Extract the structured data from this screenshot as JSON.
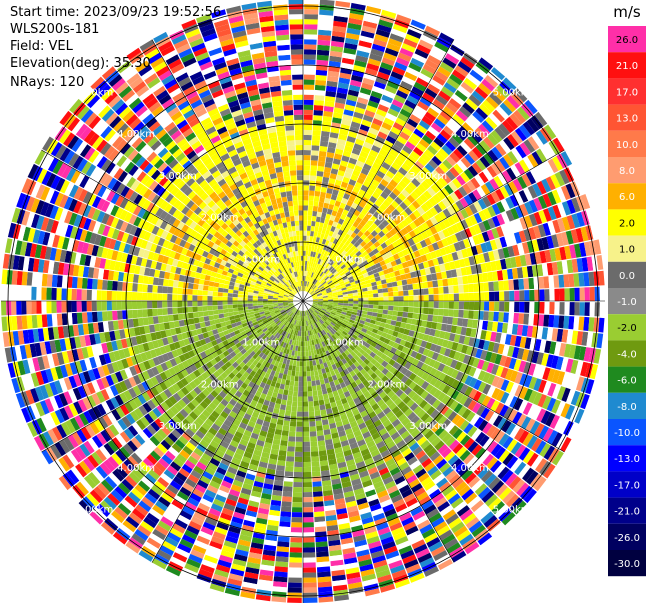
{
  "header": {
    "start_time": "Start time: 2023/09/23 19:52:56",
    "instrument": "WLS200s-181",
    "field": "Field: VEL",
    "elevation": "Elevation(deg): 35.30",
    "nrays": "NRays: 120"
  },
  "ppi": {
    "range_rings": [
      "1.00km",
      "2.00km",
      "3.00km",
      "4.00km",
      "5.00km"
    ],
    "ring_color": "#000000"
  },
  "colorbar": {
    "unit": "m/s",
    "bins": [
      {
        "label": "26.0",
        "color": "#ff2fa8",
        "text": "#000"
      },
      {
        "label": "21.0",
        "color": "#ff1010",
        "text": "#fff"
      },
      {
        "label": "17.0",
        "color": "#ff3030",
        "text": "#fff"
      },
      {
        "label": "13.0",
        "color": "#ff5533",
        "text": "#fff"
      },
      {
        "label": "10.0",
        "color": "#ff7a4a",
        "text": "#fff"
      },
      {
        "label": "8.0",
        "color": "#ff9c70",
        "text": "#fff"
      },
      {
        "label": "6.0",
        "color": "#ffb000",
        "text": "#fff"
      },
      {
        "label": "2.0",
        "color": "#ffff00",
        "text": "#000"
      },
      {
        "label": "1.0",
        "color": "#f7f28a",
        "text": "#000"
      },
      {
        "label": "0.0",
        "color": "#6b6b6b",
        "text": "#fff"
      },
      {
        "label": "-1.0",
        "color": "#8a8a8a",
        "text": "#fff"
      },
      {
        "label": "-2.0",
        "color": "#9acd32",
        "text": "#000"
      },
      {
        "label": "-4.0",
        "color": "#6f9a10",
        "text": "#fff"
      },
      {
        "label": "-6.0",
        "color": "#1f8a1f",
        "text": "#fff"
      },
      {
        "label": "-8.0",
        "color": "#1f8ad0",
        "text": "#fff"
      },
      {
        "label": "-10.0",
        "color": "#0a55ff",
        "text": "#fff"
      },
      {
        "label": "-13.0",
        "color": "#0000ff",
        "text": "#fff"
      },
      {
        "label": "-17.0",
        "color": "#0000c8",
        "text": "#fff"
      },
      {
        "label": "-21.0",
        "color": "#00008a",
        "text": "#fff"
      },
      {
        "label": "-26.0",
        "color": "#000060",
        "text": "#fff"
      },
      {
        "label": "-30.0",
        "color": "#000040",
        "text": "#fff"
      }
    ]
  }
}
